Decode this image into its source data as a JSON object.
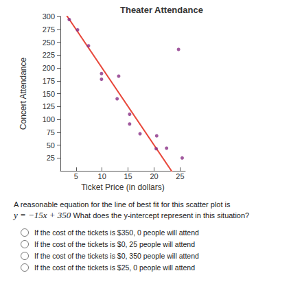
{
  "chart_data": {
    "type": "scatter",
    "title": "Theater Attendance",
    "x_label": "Ticket Price (in dollars)",
    "y_label": "Concert Attendance",
    "x": [
      3.7,
      5.3,
      7.4,
      9.9,
      9.9,
      13.2,
      12.9,
      15.3,
      15.3,
      17.3,
      20.5,
      20.4,
      22.4,
      24.7,
      25.4
    ],
    "values": [
      294,
      274,
      243,
      189,
      178,
      184,
      140,
      110,
      91,
      72,
      68,
      43,
      44,
      236,
      25
    ],
    "color": "#8a2f86",
    "marker": "circle",
    "fit_line": {
      "slope": -15,
      "intercept": 350,
      "color": "#e8473a",
      "line_style": "solid"
    },
    "xlim": [
      2,
      26
    ],
    "xticks": [
      5,
      10,
      15,
      20,
      25
    ],
    "ylim": [
      0,
      300
    ],
    "yticks": [
      25,
      50,
      75,
      100,
      125,
      150,
      175,
      200,
      225,
      250,
      275,
      300
    ],
    "grid": false
  },
  "question": {
    "intro": "A reasonable equation for the line of best fit for this scatter plot is",
    "equation": "y = −15x + 350",
    "prompt": "What does the y-intercept represent in this situation?",
    "options": [
      "If the cost of the tickets is $350, 0 people will attend",
      "If the cost of the tickets is $0, 25 people will attend",
      "If the cost of the tickets is $0, 350 people will attend",
      "If the cost of the tickets is $25, 0 people will attend"
    ]
  }
}
